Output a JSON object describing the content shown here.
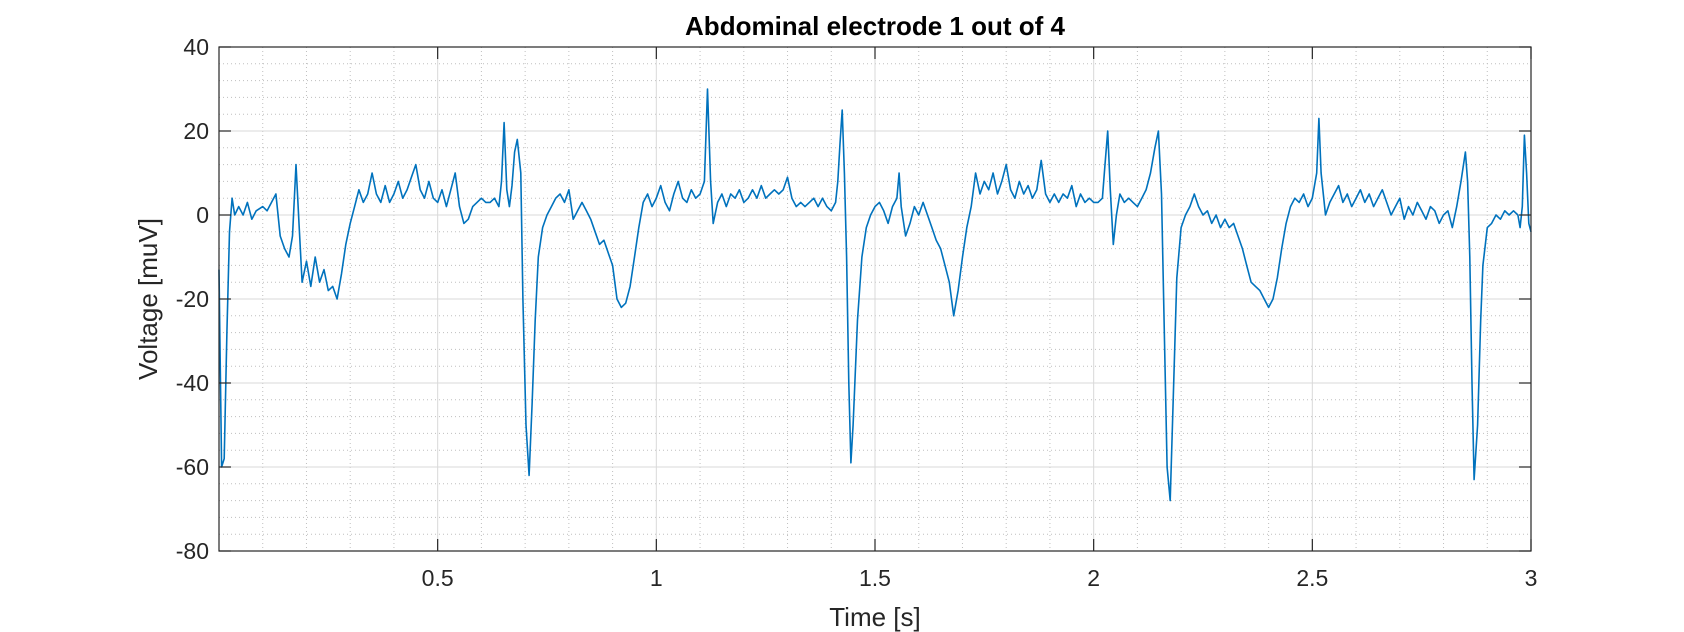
{
  "chart_data": {
    "type": "line",
    "title": "Abdominal electrode 1 out of 4",
    "xlabel": "Time [s]",
    "ylabel": "Voltage [muV]",
    "xlim": [
      0,
      3
    ],
    "ylim": [
      -80,
      40
    ],
    "xticks": [
      0.5,
      1,
      1.5,
      2,
      2.5,
      3
    ],
    "xtick_labels": [
      "0.5",
      "1",
      "1.5",
      "2",
      "2.5",
      "3"
    ],
    "yticks": [
      40,
      20,
      0,
      -20,
      -40,
      -60,
      -80
    ],
    "ytick_labels": [
      "40",
      "20",
      "0",
      "-20",
      "-40",
      "-60",
      "-80"
    ],
    "grid": true,
    "minor_grid": true,
    "colors": {
      "line": "#0072bd",
      "major_grid": "#d9d9d9",
      "minor_grid": "#bfbfbf",
      "axes": "#262626"
    },
    "series": [
      {
        "points": [
          [
            0.0,
            -13
          ],
          [
            0.006,
            -60
          ],
          [
            0.012,
            -58
          ],
          [
            0.018,
            -28
          ],
          [
            0.024,
            -4
          ],
          [
            0.03,
            4
          ],
          [
            0.036,
            0
          ],
          [
            0.045,
            2
          ],
          [
            0.055,
            0
          ],
          [
            0.065,
            3
          ],
          [
            0.075,
            -1
          ],
          [
            0.085,
            1
          ],
          [
            0.1,
            2
          ],
          [
            0.11,
            1
          ],
          [
            0.12,
            3
          ],
          [
            0.13,
            5
          ],
          [
            0.14,
            -5
          ],
          [
            0.15,
            -8
          ],
          [
            0.16,
            -10
          ],
          [
            0.168,
            -5
          ],
          [
            0.176,
            12
          ],
          [
            0.183,
            -2
          ],
          [
            0.19,
            -16
          ],
          [
            0.2,
            -11
          ],
          [
            0.21,
            -17
          ],
          [
            0.22,
            -10
          ],
          [
            0.23,
            -16
          ],
          [
            0.24,
            -13
          ],
          [
            0.25,
            -18
          ],
          [
            0.26,
            -17
          ],
          [
            0.27,
            -20
          ],
          [
            0.28,
            -14
          ],
          [
            0.29,
            -7
          ],
          [
            0.3,
            -2
          ],
          [
            0.31,
            2
          ],
          [
            0.32,
            6
          ],
          [
            0.33,
            3
          ],
          [
            0.34,
            5
          ],
          [
            0.35,
            10
          ],
          [
            0.36,
            5
          ],
          [
            0.37,
            3
          ],
          [
            0.38,
            7
          ],
          [
            0.39,
            3
          ],
          [
            0.4,
            5
          ],
          [
            0.41,
            8
          ],
          [
            0.42,
            4
          ],
          [
            0.43,
            6
          ],
          [
            0.44,
            9
          ],
          [
            0.45,
            12
          ],
          [
            0.46,
            6
          ],
          [
            0.47,
            4
          ],
          [
            0.48,
            8
          ],
          [
            0.49,
            4
          ],
          [
            0.5,
            3
          ],
          [
            0.51,
            6
          ],
          [
            0.52,
            2
          ],
          [
            0.53,
            6
          ],
          [
            0.54,
            10
          ],
          [
            0.55,
            2
          ],
          [
            0.56,
            -2
          ],
          [
            0.57,
            -1
          ],
          [
            0.58,
            2
          ],
          [
            0.59,
            3
          ],
          [
            0.6,
            4
          ],
          [
            0.61,
            3
          ],
          [
            0.62,
            3
          ],
          [
            0.63,
            4
          ],
          [
            0.64,
            2
          ],
          [
            0.646,
            8
          ],
          [
            0.652,
            22
          ],
          [
            0.658,
            6
          ],
          [
            0.664,
            2
          ],
          [
            0.67,
            7
          ],
          [
            0.676,
            15
          ],
          [
            0.682,
            18
          ],
          [
            0.69,
            10
          ],
          [
            0.695,
            -20
          ],
          [
            0.702,
            -50
          ],
          [
            0.709,
            -62
          ],
          [
            0.716,
            -45
          ],
          [
            0.723,
            -25
          ],
          [
            0.73,
            -10
          ],
          [
            0.74,
            -3
          ],
          [
            0.75,
            0
          ],
          [
            0.76,
            2
          ],
          [
            0.77,
            4
          ],
          [
            0.78,
            5
          ],
          [
            0.79,
            3
          ],
          [
            0.8,
            6
          ],
          [
            0.81,
            -1
          ],
          [
            0.82,
            1
          ],
          [
            0.83,
            3
          ],
          [
            0.84,
            1
          ],
          [
            0.85,
            -1
          ],
          [
            0.86,
            -4
          ],
          [
            0.87,
            -7
          ],
          [
            0.88,
            -6
          ],
          [
            0.89,
            -9
          ],
          [
            0.9,
            -12
          ],
          [
            0.91,
            -20
          ],
          [
            0.92,
            -22
          ],
          [
            0.93,
            -21
          ],
          [
            0.94,
            -17
          ],
          [
            0.95,
            -10
          ],
          [
            0.96,
            -3
          ],
          [
            0.97,
            3
          ],
          [
            0.98,
            5
          ],
          [
            0.99,
            2
          ],
          [
            1.0,
            4
          ],
          [
            1.01,
            7
          ],
          [
            1.02,
            3
          ],
          [
            1.03,
            1
          ],
          [
            1.04,
            5
          ],
          [
            1.05,
            8
          ],
          [
            1.06,
            4
          ],
          [
            1.07,
            3
          ],
          [
            1.08,
            6
          ],
          [
            1.09,
            4
          ],
          [
            1.1,
            5
          ],
          [
            1.11,
            8
          ],
          [
            1.117,
            30
          ],
          [
            1.124,
            8
          ],
          [
            1.13,
            -2
          ],
          [
            1.14,
            3
          ],
          [
            1.15,
            5
          ],
          [
            1.16,
            2
          ],
          [
            1.17,
            5
          ],
          [
            1.18,
            4
          ],
          [
            1.19,
            6
          ],
          [
            1.2,
            3
          ],
          [
            1.21,
            4
          ],
          [
            1.22,
            6
          ],
          [
            1.23,
            4
          ],
          [
            1.24,
            7
          ],
          [
            1.25,
            4
          ],
          [
            1.26,
            5
          ],
          [
            1.27,
            6
          ],
          [
            1.28,
            5
          ],
          [
            1.29,
            6
          ],
          [
            1.3,
            9
          ],
          [
            1.31,
            4
          ],
          [
            1.32,
            2
          ],
          [
            1.33,
            3
          ],
          [
            1.34,
            2
          ],
          [
            1.35,
            3
          ],
          [
            1.36,
            4
          ],
          [
            1.37,
            2
          ],
          [
            1.38,
            4
          ],
          [
            1.39,
            2
          ],
          [
            1.4,
            1
          ],
          [
            1.41,
            3
          ],
          [
            1.415,
            8
          ],
          [
            1.42,
            17
          ],
          [
            1.425,
            25
          ],
          [
            1.43,
            10
          ],
          [
            1.435,
            -10
          ],
          [
            1.44,
            -40
          ],
          [
            1.445,
            -59
          ],
          [
            1.45,
            -50
          ],
          [
            1.46,
            -25
          ],
          [
            1.47,
            -10
          ],
          [
            1.48,
            -3
          ],
          [
            1.49,
            0
          ],
          [
            1.5,
            2
          ],
          [
            1.51,
            3
          ],
          [
            1.52,
            1
          ],
          [
            1.53,
            -2
          ],
          [
            1.54,
            2
          ],
          [
            1.55,
            4
          ],
          [
            1.555,
            10
          ],
          [
            1.56,
            2
          ],
          [
            1.57,
            -5
          ],
          [
            1.58,
            -2
          ],
          [
            1.59,
            2
          ],
          [
            1.6,
            0
          ],
          [
            1.61,
            3
          ],
          [
            1.62,
            0
          ],
          [
            1.63,
            -3
          ],
          [
            1.64,
            -6
          ],
          [
            1.65,
            -8
          ],
          [
            1.66,
            -12
          ],
          [
            1.67,
            -16
          ],
          [
            1.68,
            -24
          ],
          [
            1.69,
            -18
          ],
          [
            1.7,
            -10
          ],
          [
            1.71,
            -3
          ],
          [
            1.72,
            2
          ],
          [
            1.73,
            10
          ],
          [
            1.74,
            5
          ],
          [
            1.75,
            8
          ],
          [
            1.76,
            6
          ],
          [
            1.77,
            10
          ],
          [
            1.78,
            5
          ],
          [
            1.79,
            8
          ],
          [
            1.8,
            12
          ],
          [
            1.81,
            6
          ],
          [
            1.82,
            4
          ],
          [
            1.83,
            8
          ],
          [
            1.84,
            5
          ],
          [
            1.85,
            7
          ],
          [
            1.86,
            4
          ],
          [
            1.87,
            6
          ],
          [
            1.88,
            13
          ],
          [
            1.89,
            5
          ],
          [
            1.9,
            3
          ],
          [
            1.91,
            5
          ],
          [
            1.92,
            3
          ],
          [
            1.93,
            5
          ],
          [
            1.94,
            4
          ],
          [
            1.95,
            7
          ],
          [
            1.96,
            2
          ],
          [
            1.97,
            5
          ],
          [
            1.98,
            3
          ],
          [
            1.99,
            4
          ],
          [
            2.0,
            3
          ],
          [
            2.01,
            3
          ],
          [
            2.02,
            4
          ],
          [
            2.026,
            12
          ],
          [
            2.032,
            20
          ],
          [
            2.038,
            6
          ],
          [
            2.045,
            -7
          ],
          [
            2.052,
            0
          ],
          [
            2.06,
            5
          ],
          [
            2.07,
            3
          ],
          [
            2.08,
            4
          ],
          [
            2.09,
            3
          ],
          [
            2.1,
            2
          ],
          [
            2.11,
            4
          ],
          [
            2.12,
            6
          ],
          [
            2.13,
            10
          ],
          [
            2.14,
            16
          ],
          [
            2.148,
            20
          ],
          [
            2.155,
            5
          ],
          [
            2.162,
            -30
          ],
          [
            2.168,
            -60
          ],
          [
            2.175,
            -68
          ],
          [
            2.183,
            -40
          ],
          [
            2.19,
            -15
          ],
          [
            2.2,
            -3
          ],
          [
            2.21,
            0
          ],
          [
            2.22,
            2
          ],
          [
            2.23,
            5
          ],
          [
            2.24,
            2
          ],
          [
            2.25,
            0
          ],
          [
            2.26,
            1
          ],
          [
            2.27,
            -2
          ],
          [
            2.28,
            0
          ],
          [
            2.29,
            -3
          ],
          [
            2.3,
            -1
          ],
          [
            2.31,
            -3
          ],
          [
            2.32,
            -2
          ],
          [
            2.33,
            -5
          ],
          [
            2.34,
            -8
          ],
          [
            2.35,
            -12
          ],
          [
            2.36,
            -16
          ],
          [
            2.37,
            -17
          ],
          [
            2.38,
            -18
          ],
          [
            2.39,
            -20
          ],
          [
            2.4,
            -22
          ],
          [
            2.41,
            -20
          ],
          [
            2.42,
            -15
          ],
          [
            2.43,
            -8
          ],
          [
            2.44,
            -2
          ],
          [
            2.45,
            2
          ],
          [
            2.46,
            4
          ],
          [
            2.47,
            3
          ],
          [
            2.48,
            5
          ],
          [
            2.49,
            2
          ],
          [
            2.5,
            4
          ],
          [
            2.51,
            10
          ],
          [
            2.515,
            23
          ],
          [
            2.52,
            10
          ],
          [
            2.53,
            0
          ],
          [
            2.54,
            3
          ],
          [
            2.55,
            5
          ],
          [
            2.56,
            7
          ],
          [
            2.57,
            3
          ],
          [
            2.58,
            5
          ],
          [
            2.59,
            2
          ],
          [
            2.6,
            4
          ],
          [
            2.61,
            6
          ],
          [
            2.62,
            3
          ],
          [
            2.63,
            5
          ],
          [
            2.64,
            2
          ],
          [
            2.65,
            4
          ],
          [
            2.66,
            6
          ],
          [
            2.67,
            3
          ],
          [
            2.68,
            0
          ],
          [
            2.69,
            2
          ],
          [
            2.7,
            4
          ],
          [
            2.71,
            -1
          ],
          [
            2.72,
            2
          ],
          [
            2.73,
            0
          ],
          [
            2.74,
            3
          ],
          [
            2.75,
            1
          ],
          [
            2.76,
            -1
          ],
          [
            2.77,
            2
          ],
          [
            2.78,
            1
          ],
          [
            2.79,
            -2
          ],
          [
            2.8,
            0
          ],
          [
            2.81,
            1
          ],
          [
            2.82,
            -3
          ],
          [
            2.83,
            2
          ],
          [
            2.84,
            8
          ],
          [
            2.85,
            15
          ],
          [
            2.855,
            8
          ],
          [
            2.86,
            -10
          ],
          [
            2.865,
            -40
          ],
          [
            2.87,
            -63
          ],
          [
            2.878,
            -50
          ],
          [
            2.885,
            -25
          ],
          [
            2.89,
            -12
          ],
          [
            2.9,
            -3
          ],
          [
            2.91,
            -2
          ],
          [
            2.92,
            0
          ],
          [
            2.93,
            -1
          ],
          [
            2.94,
            1
          ],
          [
            2.95,
            0
          ],
          [
            2.96,
            1
          ],
          [
            2.97,
            0
          ],
          [
            2.975,
            -3
          ],
          [
            2.98,
            2
          ],
          [
            2.985,
            19
          ],
          [
            2.99,
            10
          ],
          [
            2.995,
            -2
          ],
          [
            3.0,
            -4
          ]
        ]
      }
    ]
  }
}
